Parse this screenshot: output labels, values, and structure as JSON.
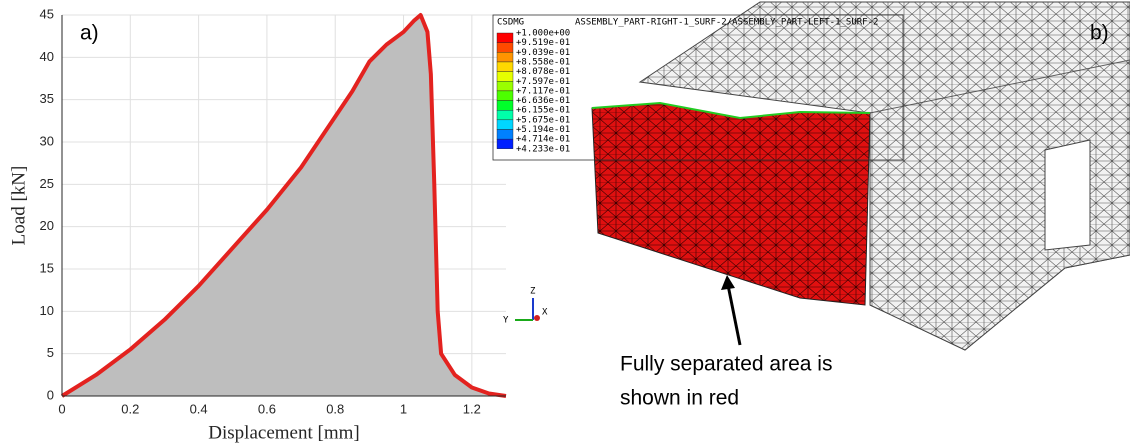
{
  "chart_data": {
    "type": "area-line",
    "panel_label": "a)",
    "x_label": "Displacement [mm]",
    "y_label": "Load [kN]",
    "x": [
      0,
      0.1,
      0.2,
      0.3,
      0.4,
      0.5,
      0.6,
      0.7,
      0.8,
      0.85,
      0.9,
      0.95,
      1.0,
      1.03,
      1.05,
      1.07,
      1.08,
      1.09,
      1.1,
      1.11,
      1.15,
      1.2,
      1.25,
      1.3
    ],
    "series": [
      {
        "color": "#e3221f",
        "fill": "#bebebe",
        "values": [
          0,
          2.5,
          5.5,
          9,
          13,
          17.5,
          22,
          27,
          33,
          36,
          39.5,
          41.5,
          43,
          44.3,
          45,
          43,
          38,
          25,
          10,
          5,
          2.5,
          1,
          0.3,
          0
        ]
      }
    ],
    "xlim": [
      0,
      1.3
    ],
    "ylim": [
      0,
      45
    ],
    "xticks": [
      0,
      0.2,
      0.4,
      0.6,
      0.8,
      1,
      1.2
    ],
    "yticks": [
      0,
      5,
      10,
      15,
      20,
      25,
      30,
      35,
      40,
      45
    ],
    "grid": true
  },
  "model": {
    "panel_label": "b)",
    "variable": "CSDMG",
    "surfaces": "ASSEMBLY_PART-RIGHT-1_SURF-2/ASSEMBLY_PART-LEFT-1_SURF-2",
    "levels": [
      "+1.000e+00",
      "+9.519e-01",
      "+9.039e-01",
      "+8.558e-01",
      "+8.078e-01",
      "+7.597e-01",
      "+7.117e-01",
      "+6.636e-01",
      "+6.155e-01",
      "+5.675e-01",
      "+5.194e-01",
      "+4.714e-01",
      "+4.233e-01"
    ],
    "triad": [
      "Z",
      "Y",
      "X"
    ],
    "note": [
      "Fully separated area is",
      "shown in red"
    ]
  }
}
